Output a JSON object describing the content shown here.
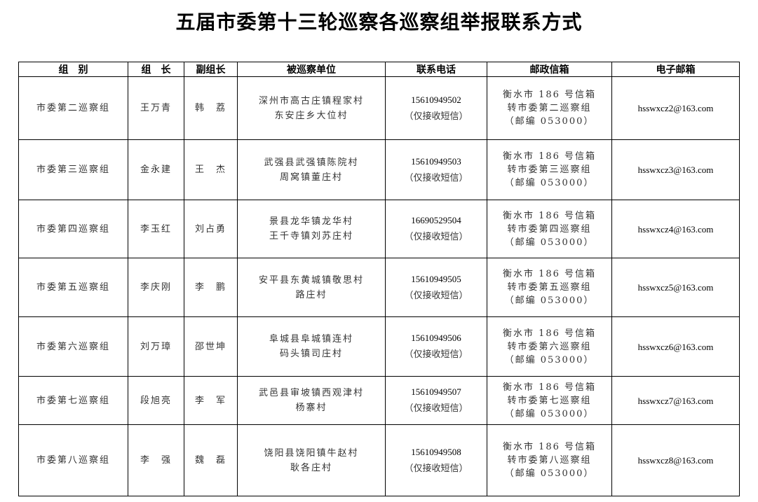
{
  "title": "五届市委第十三轮巡察各巡察组举报联系方式",
  "headers": [
    "组　别",
    "组　长",
    "副组长",
    "被巡察单位",
    "联系电话",
    "邮政信箱",
    "电子邮箱"
  ],
  "rows": [
    {
      "group": "市委第二巡察组",
      "leader": "王万青",
      "deputy": "韩　荔",
      "units": [
        "深州市高古庄镇程家村",
        "东安庄乡大位村"
      ],
      "phone": "15610949502",
      "phone_note": "（仅接收短信）",
      "mail": [
        "衡水市 186 号信箱",
        "转市委第二巡察组",
        "（邮编 053000）"
      ],
      "email": "hsswxcz2@163.com"
    },
    {
      "group": "市委第三巡察组",
      "leader": "金永建",
      "deputy": "王　杰",
      "units": [
        "武强县武强镇陈院村",
        "周窝镇董庄村"
      ],
      "phone": "15610949503",
      "phone_note": "（仅接收短信）",
      "mail": [
        "衡水市 186 号信箱",
        "转市委第三巡察组",
        "（邮编 053000）"
      ],
      "email": "hsswxcz3@163.com"
    },
    {
      "group": "市委第四巡察组",
      "leader": "李玉红",
      "deputy": "刘占勇",
      "units": [
        "景县龙华镇龙华村",
        "王千寺镇刘苏庄村"
      ],
      "phone": "16690529504",
      "phone_note": "（仅接收短信）",
      "mail": [
        "衡水市 186 号信箱",
        "转市委第四巡察组",
        "（邮编 053000）"
      ],
      "email": "hsswxcz4@163.com"
    },
    {
      "group": "市委第五巡察组",
      "leader": "李庆刚",
      "deputy": "李　鹏",
      "units": [
        "安平县东黄城镇敬思村",
        "路庄村"
      ],
      "phone": "15610949505",
      "phone_note": "（仅接收短信）",
      "mail": [
        "衡水市 186 号信箱",
        "转市委第五巡察组",
        "（邮编 053000）"
      ],
      "email": "hsswxcz5@163.com"
    },
    {
      "group": "市委第六巡察组",
      "leader": "刘万璋",
      "deputy": "邵世坤",
      "units": [
        "阜城县阜城镇连村",
        "码头镇司庄村"
      ],
      "phone": "15610949506",
      "phone_note": "（仅接收短信）",
      "mail": [
        "衡水市 186 号信箱",
        "转市委第六巡察组",
        "（邮编 053000）"
      ],
      "email": "hsswxcz6@163.com"
    },
    {
      "group": "市委第七巡察组",
      "leader": "段旭亮",
      "deputy": "李　军",
      "units": [
        "武邑县审坡镇西观津村",
        "杨寨村"
      ],
      "phone": "15610949507",
      "phone_note": "（仅接收短信）",
      "mail": [
        "衡水市 186 号信箱",
        "转市委第七巡察组",
        "（邮编 053000）"
      ],
      "email": "hsswxcz7@163.com"
    },
    {
      "group": "市委第八巡察组",
      "leader": "李　强",
      "deputy": "魏　磊",
      "units": [
        "饶阳县饶阳镇牛赵村",
        "耿各庄村"
      ],
      "phone": "15610949508",
      "phone_note": "（仅接收短信）",
      "mail": [
        "衡水市 186 号信箱",
        "转市委第八巡察组",
        "（邮编 053000）"
      ],
      "email": "hsswxcz8@163.com"
    }
  ]
}
